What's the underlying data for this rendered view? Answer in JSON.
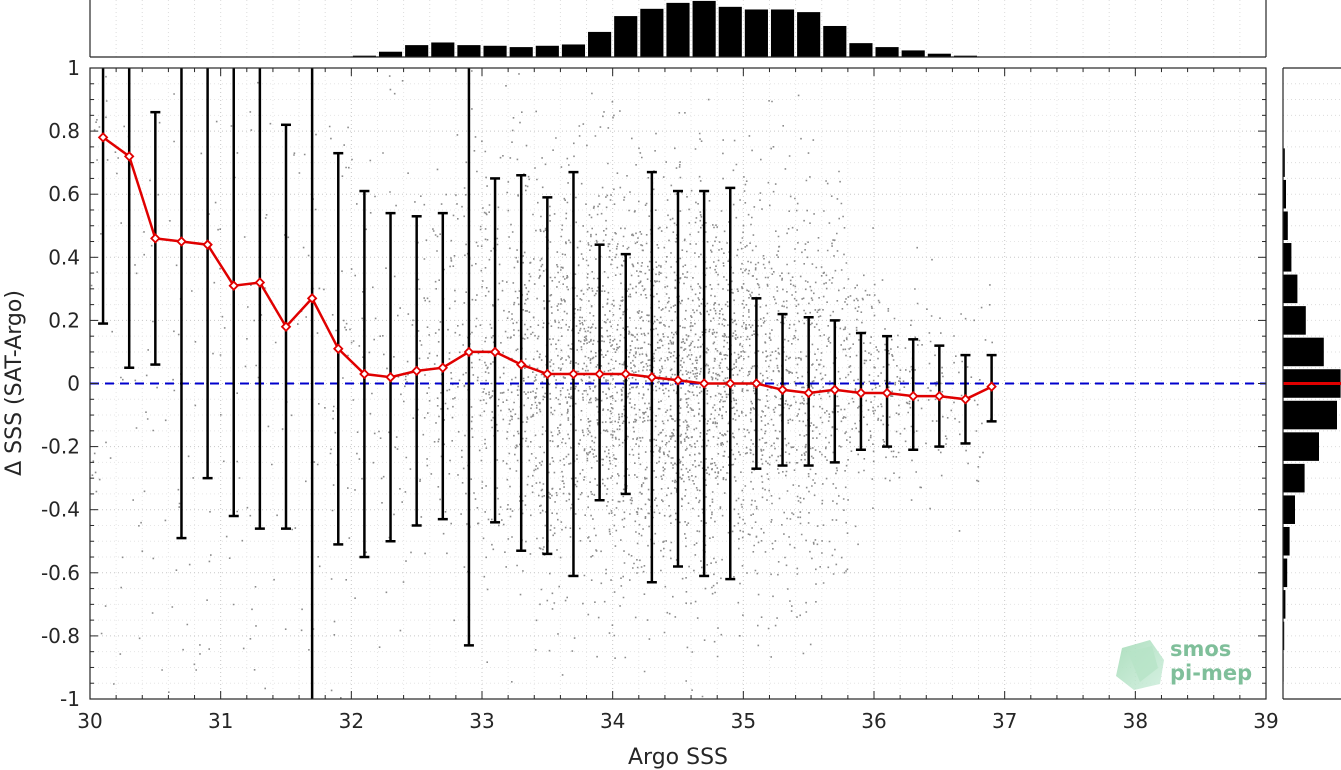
{
  "chart_data": {
    "type": "scatter",
    "xlabel": "Argo SSS",
    "ylabel": "Δ SSS (SAT-Argo)",
    "xlim": [
      30,
      39
    ],
    "ylim": [
      -1,
      1
    ],
    "x_ticks": [
      "30",
      "31",
      "32",
      "33",
      "34",
      "35",
      "36",
      "37",
      "38",
      "39"
    ],
    "y_ticks": [
      "-1",
      "-0.8",
      "-0.6",
      "-0.4",
      "-0.2",
      "0",
      "0.2",
      "0.4",
      "0.6",
      "0.8",
      "1"
    ],
    "grid": "dotted",
    "zero_line": {
      "y": 0,
      "color": "#0000cc",
      "style": "dashed"
    },
    "scatter_color": "#8c8c8c",
    "mean_color": "#e00000",
    "errorbar_color": "#000000",
    "scatter_cloud": {
      "x_center": 34.4,
      "x_spread": 1.0,
      "x_range": [
        31.8,
        36.9
      ],
      "y_spread": 0.33
    },
    "binned_mean": {
      "x": [
        30.1,
        30.3,
        30.5,
        30.7,
        30.9,
        31.1,
        31.3,
        31.5,
        31.7,
        31.9,
        32.1,
        32.3,
        32.5,
        32.7,
        32.9,
        33.1,
        33.3,
        33.5,
        33.7,
        33.9,
        34.1,
        34.3,
        34.5,
        34.7,
        34.9,
        35.1,
        35.3,
        35.5,
        35.7,
        35.9,
        36.1,
        36.3,
        36.5,
        36.7,
        36.9
      ],
      "mean": [
        0.78,
        0.72,
        0.46,
        0.45,
        0.44,
        0.31,
        0.32,
        0.18,
        0.27,
        0.11,
        0.03,
        0.02,
        0.04,
        0.05,
        0.1,
        0.1,
        0.06,
        0.03,
        0.03,
        0.03,
        0.03,
        0.02,
        0.01,
        0.0,
        0.0,
        0.0,
        -0.02,
        -0.03,
        -0.02,
        -0.03,
        -0.03,
        -0.04,
        -0.04,
        -0.05,
        -0.01
      ],
      "lower": [
        0.19,
        0.05,
        0.06,
        -0.49,
        -0.3,
        -0.42,
        -0.46,
        -0.46,
        -1.0,
        -0.51,
        -0.55,
        -0.5,
        -0.45,
        -0.43,
        -0.83,
        -0.44,
        -0.53,
        -0.54,
        -0.61,
        -0.37,
        -0.35,
        -0.63,
        -0.58,
        -0.61,
        -0.62,
        -0.27,
        -0.26,
        -0.26,
        -0.25,
        -0.21,
        -0.2,
        -0.21,
        -0.2,
        -0.19,
        -0.12
      ],
      "upper": [
        1.0,
        1.0,
        0.86,
        1.0,
        1.0,
        1.0,
        1.0,
        0.82,
        1.0,
        0.73,
        0.61,
        0.54,
        0.53,
        0.54,
        1.0,
        0.65,
        0.66,
        0.59,
        0.67,
        0.44,
        0.41,
        0.67,
        0.61,
        0.61,
        0.62,
        0.27,
        0.22,
        0.21,
        0.2,
        0.16,
        0.15,
        0.14,
        0.12,
        0.09,
        0.09
      ]
    },
    "top_histogram": {
      "bin_width": 0.2,
      "x": [
        32.1,
        32.3,
        32.5,
        32.7,
        32.9,
        33.1,
        33.3,
        33.5,
        33.7,
        33.9,
        34.1,
        34.3,
        34.5,
        34.7,
        34.9,
        35.1,
        35.3,
        35.5,
        35.7,
        35.9,
        36.1,
        36.3,
        36.5,
        36.7
      ],
      "values": [
        0.02,
        0.08,
        0.18,
        0.22,
        0.18,
        0.17,
        0.15,
        0.17,
        0.19,
        0.38,
        0.62,
        0.73,
        0.82,
        0.85,
        0.76,
        0.72,
        0.72,
        0.68,
        0.47,
        0.21,
        0.15,
        0.1,
        0.05,
        0.02
      ]
    },
    "right_histogram": {
      "bin_width": 0.1,
      "y": [
        0.7,
        0.6,
        0.5,
        0.4,
        0.3,
        0.2,
        0.1,
        0.0,
        -0.1,
        -0.2,
        -0.3,
        -0.4,
        -0.5,
        -0.6,
        -0.7,
        -0.8,
        -0.9
      ],
      "values": [
        0.03,
        0.05,
        0.08,
        0.14,
        0.24,
        0.38,
        0.68,
        0.96,
        0.9,
        0.6,
        0.36,
        0.2,
        0.11,
        0.07,
        0.04,
        0.02,
        0.01
      ],
      "mean_marker_y": 0
    }
  },
  "logo": {
    "line1": "smos",
    "line2": "pi-mep"
  }
}
